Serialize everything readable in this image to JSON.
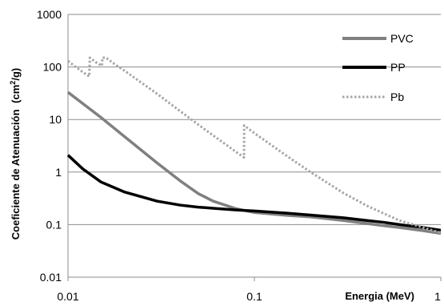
{
  "chart_data": {
    "type": "line",
    "title": "",
    "xlabel": "Energia (MeV)",
    "ylabel": "Coeficiente de Atenuación",
    "ylabel_unit_prefix": "(cm",
    "ylabel_unit_sup": "2",
    "ylabel_unit_suffix": "/g)",
    "x_scale": "log",
    "y_scale": "log",
    "xlim": [
      0.01,
      1
    ],
    "ylim": [
      0.01,
      1000
    ],
    "x_ticks": [
      "0.01",
      "0.1",
      "1"
    ],
    "y_ticks": [
      "0.01",
      "0.1",
      "1",
      "10",
      "100",
      "1000"
    ],
    "grid": "horizontal",
    "legend_position": "top-right",
    "series": [
      {
        "name": "PVC",
        "color": "#808080",
        "dash": "solid",
        "x": [
          0.01,
          0.015,
          0.02,
          0.03,
          0.04,
          0.05,
          0.06,
          0.08,
          0.1,
          0.15,
          0.2,
          0.3,
          0.4,
          0.5,
          0.6,
          0.8,
          1
        ],
        "y": [
          33,
          11,
          4.8,
          1.5,
          0.68,
          0.39,
          0.28,
          0.2,
          0.17,
          0.15,
          0.14,
          0.12,
          0.105,
          0.095,
          0.088,
          0.077,
          0.068
        ]
      },
      {
        "name": "PP",
        "color": "#000000",
        "dash": "solid",
        "x": [
          0.01,
          0.012,
          0.015,
          0.02,
          0.03,
          0.04,
          0.05,
          0.06,
          0.08,
          0.1,
          0.15,
          0.2,
          0.3,
          0.4,
          0.5,
          0.6,
          0.8,
          1
        ],
        "y": [
          2.1,
          1.15,
          0.65,
          0.42,
          0.28,
          0.235,
          0.215,
          0.205,
          0.19,
          0.182,
          0.165,
          0.152,
          0.135,
          0.12,
          0.11,
          0.1,
          0.088,
          0.078
        ]
      },
      {
        "name": "Pb",
        "color": "#a6a6a6",
        "dash": "dotted",
        "x": [
          0.01,
          0.011,
          0.012,
          0.013,
          0.0131,
          0.014,
          0.0152,
          0.0153,
          0.016,
          0.018,
          0.02,
          0.03,
          0.04,
          0.05,
          0.06,
          0.08,
          0.088,
          0.0881,
          0.1,
          0.15,
          0.2,
          0.3,
          0.4,
          0.5,
          0.6,
          0.8,
          1
        ],
        "y": [
          130,
          100,
          80,
          66,
          150,
          125,
          105,
          150,
          150,
          110,
          86,
          31,
          14.4,
          8.0,
          5.0,
          2.4,
          1.9,
          7.7,
          5.5,
          2.0,
          1.0,
          0.4,
          0.23,
          0.16,
          0.12,
          0.088,
          0.07
        ]
      }
    ]
  }
}
